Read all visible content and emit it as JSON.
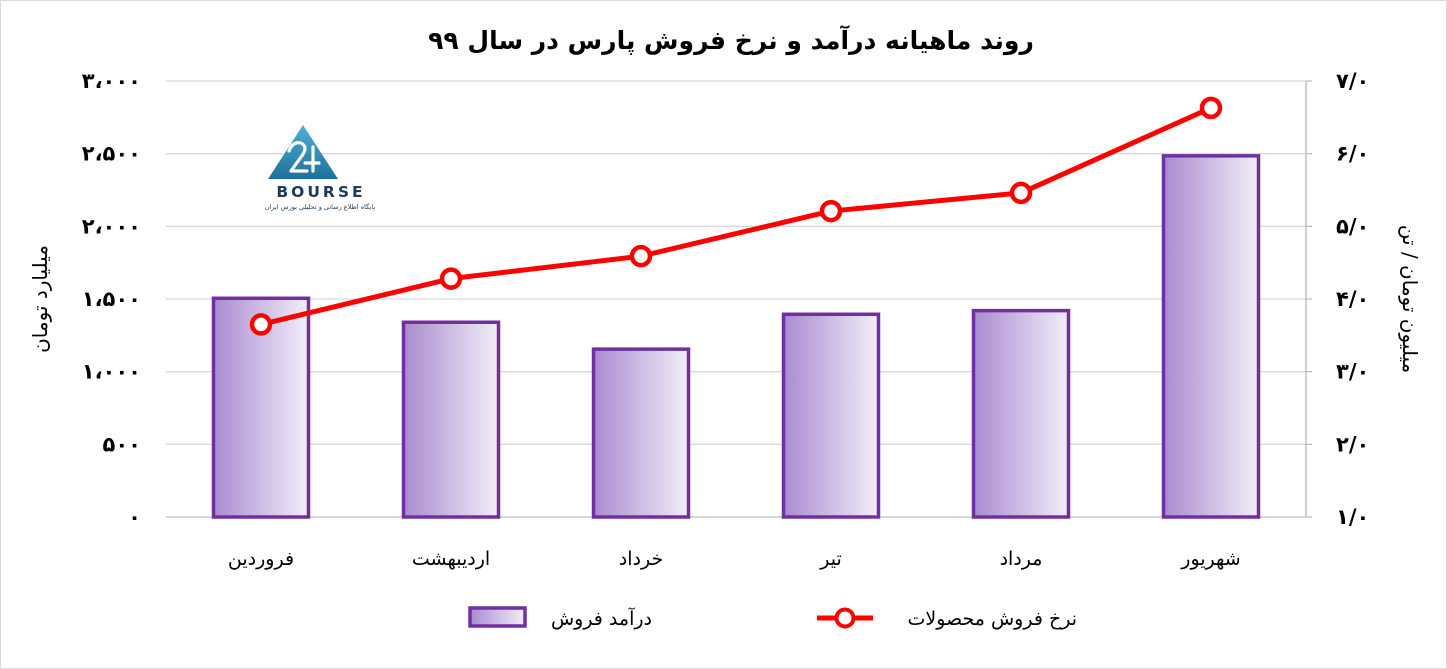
{
  "chart_data": {
    "type": "bar",
    "title": "روند ماهیانه درآمد و نرخ فروش پارس در سال ۹۹",
    "categories": [
      "فروردین",
      "اردیبهشت",
      "خرداد",
      "تیر",
      "مرداد",
      "شهریور"
    ],
    "series": [
      {
        "name": "درآمد فروش",
        "kind": "bar",
        "axis": "left",
        "values": [
          1505,
          1340,
          1155,
          1395,
          1420,
          2485
        ],
        "color": "#7030a0"
      },
      {
        "name": "نرخ فروش محصولات",
        "kind": "line",
        "axis": "right",
        "values": [
          3.65,
          4.28,
          4.59,
          5.21,
          5.46,
          6.63
        ],
        "color": "#ff0000"
      }
    ],
    "ylabel": "میلیارد تومان",
    "ylim": [
      0,
      3000
    ],
    "yticks": [
      0,
      500,
      1000,
      1500,
      2000,
      2500,
      3000
    ],
    "ytick_labels": [
      "۰",
      "۵۰۰",
      "۱،۰۰۰",
      "۱،۵۰۰",
      "۲،۰۰۰",
      "۲،۵۰۰",
      "۳،۰۰۰"
    ],
    "y2label": "میلیون تومان  /  تن",
    "y2lim": [
      1,
      7
    ],
    "y2ticks": [
      1,
      2,
      3,
      4,
      5,
      6,
      7
    ],
    "y2tick_labels": [
      "۱/۰",
      "۲/۰",
      "۳/۰",
      "۴/۰",
      "۵/۰",
      "۶/۰",
      "۷/۰"
    ],
    "grid": "horizontal",
    "legend_position": "bottom"
  },
  "logo": {
    "name": "24 BOURSE",
    "wordmark": "BOURSE",
    "tagline": "پایگاه اطلاع رسانی و تحلیلی بورس ایران"
  }
}
